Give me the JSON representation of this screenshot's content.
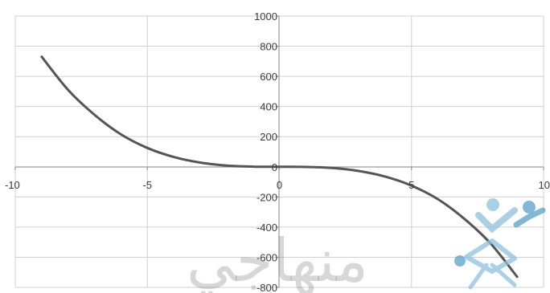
{
  "chart_data": {
    "type": "line",
    "title": "",
    "xlabel": "",
    "ylabel": "",
    "xlim": [
      -10,
      10
    ],
    "ylim": [
      -800,
      1000
    ],
    "x_ticks": [
      -10,
      -5,
      0,
      5,
      10
    ],
    "x_tick_labels": [
      "-10",
      "-5",
      "0",
      "5",
      "10"
    ],
    "y_ticks": [
      -800,
      -600,
      -400,
      -200,
      0,
      200,
      400,
      600,
      800,
      1000
    ],
    "y_tick_labels": [
      "-800",
      "-600",
      "-400",
      "-200",
      "0",
      "200",
      "400",
      "600",
      "800",
      "1000"
    ],
    "grid": true,
    "legend": "none",
    "series": [
      {
        "color": "#555555",
        "x": [
          -9,
          -8,
          -7,
          -6,
          -5,
          -4,
          -3,
          -2,
          -1,
          0,
          1,
          2,
          3,
          4,
          5,
          6,
          7,
          8,
          9
        ],
        "y": [
          730,
          510,
          345,
          215,
          125,
          65,
          28,
          8,
          1,
          0,
          -1,
          -8,
          -28,
          -65,
          -125,
          -215,
          -345,
          -510,
          -730
        ]
      }
    ]
  },
  "watermark": {
    "text": "منهاجي",
    "logo_icon": "people-logo-icon",
    "logo_colors": [
      "#8fc1de",
      "#5c9fc9"
    ]
  }
}
